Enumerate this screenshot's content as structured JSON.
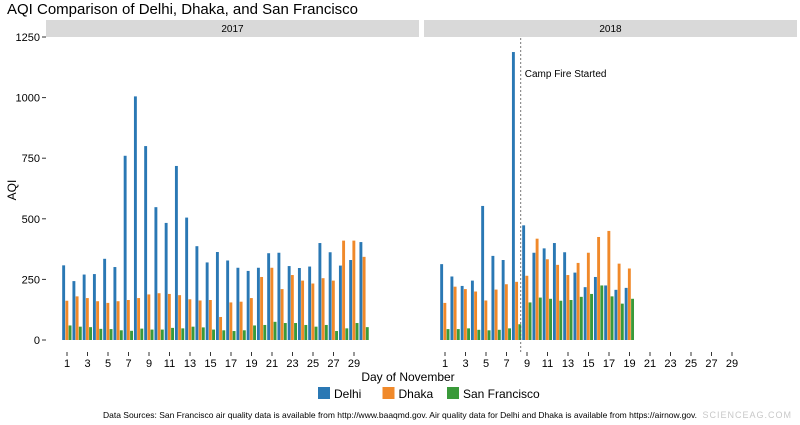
{
  "chart_data": {
    "type": "bar",
    "title": "AQI Comparison of Delhi, Dhaka, and San Francisco",
    "xlabel": "Day of November",
    "ylabel": "AQI",
    "ylim": [
      0,
      1250
    ],
    "yticks": [
      0,
      250,
      500,
      750,
      1000,
      1250
    ],
    "xlim": [
      0,
      30
    ],
    "xticks": [
      1,
      3,
      5,
      7,
      9,
      11,
      13,
      15,
      17,
      19,
      21,
      23,
      25,
      27,
      29
    ],
    "grid": false,
    "legend_position": "bottom",
    "colors": {
      "Delhi": "#2a78b4",
      "Dhaka": "#f0892a",
      "San Francisco": "#3a9a3a"
    },
    "panels": [
      {
        "label": "2017",
        "series": [
          {
            "name": "Delhi",
            "values": [
              308,
              243,
              270,
              272,
              335,
              301,
              760,
              1005,
              800,
              548,
              483,
              718,
              505,
              387,
              320,
              363,
              328,
              298,
              285,
              298,
              358,
              360,
              305,
              297,
              303,
              400,
              362,
              307,
              330,
              404
            ]
          },
          {
            "name": "Dhaka",
            "values": [
              162,
              180,
              173,
              160,
              153,
              160,
              165,
              173,
              188,
              193,
              190,
              185,
              168,
              163,
              165,
              95,
              155,
              158,
              173,
              260,
              298,
              210,
              268,
              245,
              233,
              255,
              245,
              410,
              410,
              343
            ]
          },
          {
            "name": "San Francisco",
            "values": [
              60,
              55,
              53,
              46,
              45,
              40,
              38,
              47,
              43,
              43,
              50,
              48,
              55,
              52,
              43,
              40,
              37,
              40,
              60,
              62,
              75,
              70,
              70,
              62,
              55,
              62,
              37,
              48,
              70,
              53
            ]
          }
        ]
      },
      {
        "label": "2018",
        "series": [
          {
            "name": "Delhi",
            "values": [
              313,
              262,
              223,
              245,
              553,
              347,
              330,
              1188,
              473,
              360,
              378,
              400,
              362,
              278,
              218,
              260,
              225,
              207,
              215,
              null,
              null,
              null,
              null,
              null,
              null,
              null,
              null,
              null,
              null,
              null
            ]
          },
          {
            "name": "Dhaka",
            "values": [
              153,
              220,
              210,
              200,
              163,
              208,
              230,
              240,
              265,
              418,
              333,
              310,
              268,
              318,
              360,
              425,
              450,
              315,
              295,
              null,
              null,
              null,
              null,
              null,
              null,
              null,
              null,
              null,
              null,
              null
            ]
          },
          {
            "name": "San Francisco",
            "values": [
              45,
              45,
              48,
              42,
              40,
              42,
              48,
              65,
              155,
              175,
              170,
              162,
              165,
              178,
              190,
              225,
              180,
              150,
              170,
              null,
              null,
              null,
              null,
              null,
              null,
              null,
              null,
              null,
              null,
              null
            ]
          }
        ],
        "annotation": {
          "x": 8,
          "text": "Camp Fire Started"
        }
      }
    ]
  },
  "source_note": "Data Sources: San Francisco air quality data is available from http://www.baaqmd.gov. Air quality data for Delhi and Dhaka is available from https://airnow.gov.",
  "watermark": "SCIENCEAG.COM"
}
